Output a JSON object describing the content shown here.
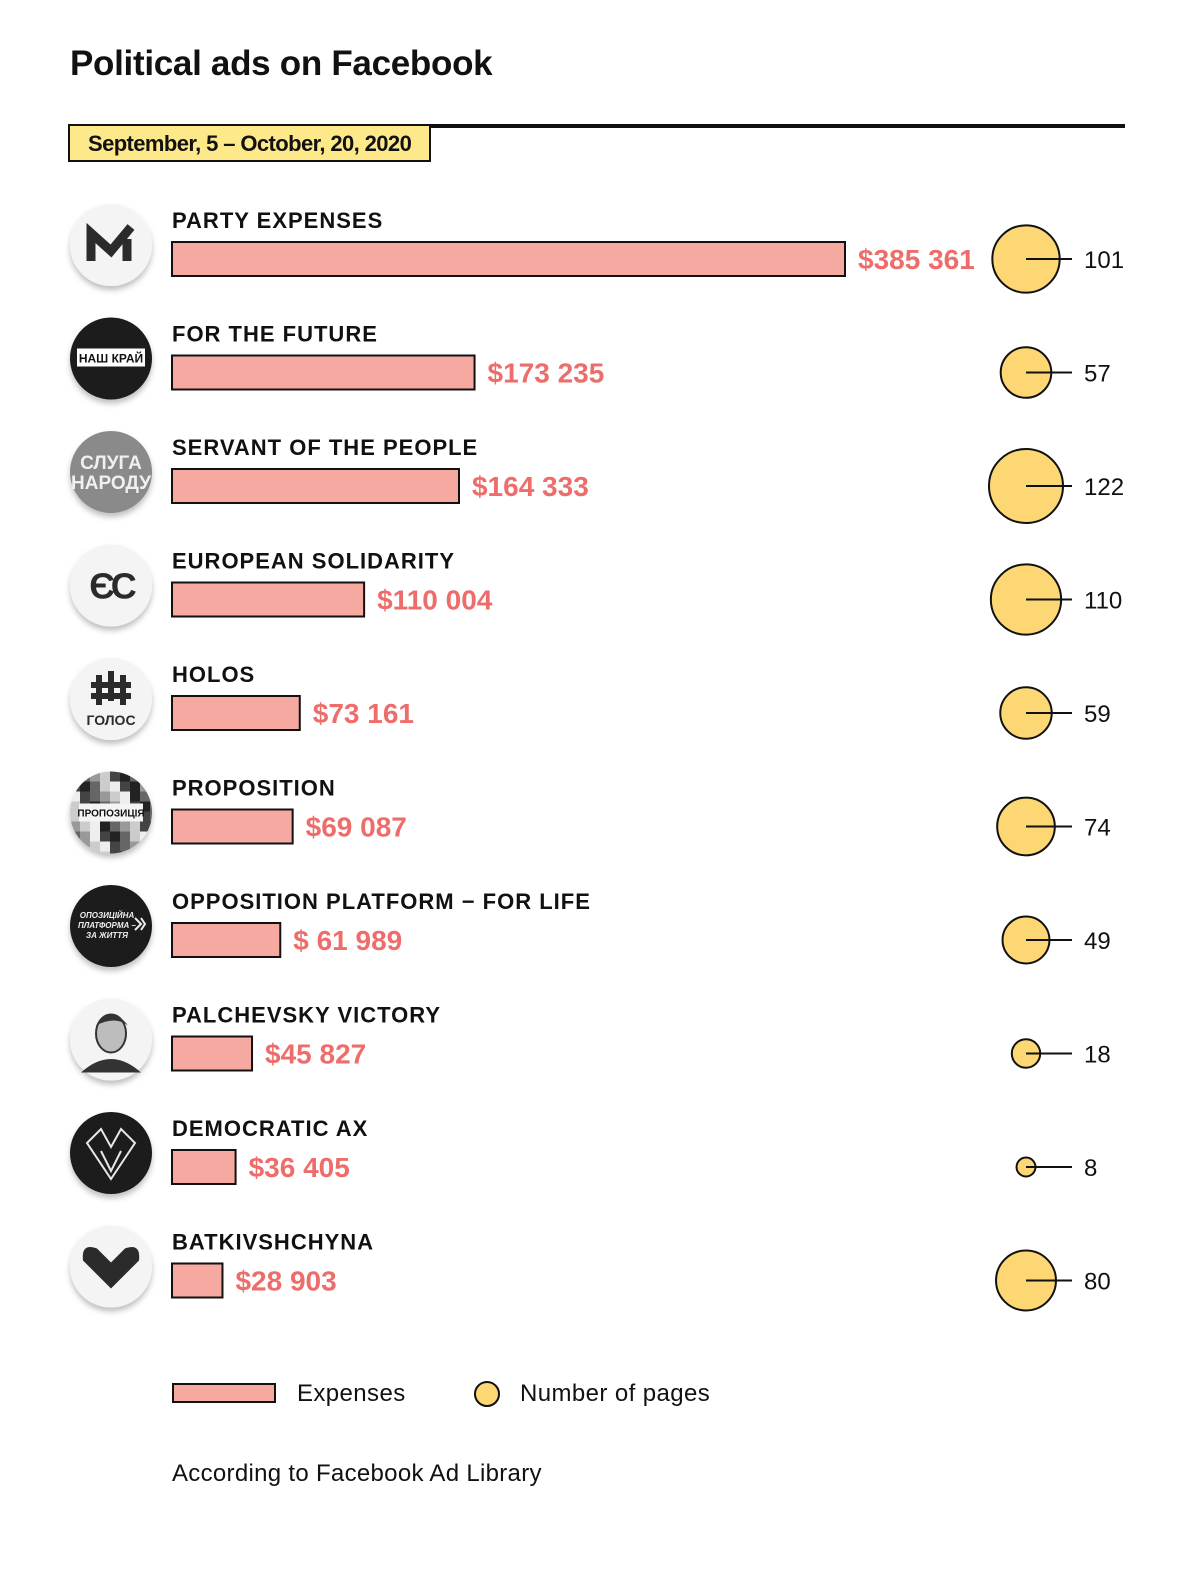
{
  "title": "Political ads on Facebook",
  "date_range": "September, 5 – October, 20, 2020",
  "legend": {
    "expenses": "Expenses",
    "pages": "Number of pages"
  },
  "source": "According to Facebook Ad Library",
  "colors": {
    "bar": "#f5a9a1",
    "value_text": "#ee6d6b",
    "bubble": "#fcd774",
    "outline": "#111111"
  },
  "chart_data": {
    "type": "bar",
    "categories": [
      "PARTY EXPENSES",
      "FOR THE FUTURE",
      "SERVANT OF THE PEOPLE",
      "EUROPEAN SOLIDARITY",
      "HOLOS",
      "PROPOSITION",
      "OPPOSITION PLATFORM − FOR LIFE",
      "PALCHEVSKY VICTORY",
      "DEMOCRATIC AX",
      "BATKIVSHCHYNA"
    ],
    "series": [
      {
        "name": "Expenses",
        "values": [
          385361,
          173235,
          164333,
          110004,
          73161,
          69087,
          61989,
          45827,
          36405,
          28903
        ],
        "labels": [
          "$385 361",
          "$173 235",
          "$164 333",
          "$110 004",
          "$73 161",
          "$69 087",
          "$ 61  989",
          "$45 827",
          "$36 405",
          "$28 903"
        ]
      },
      {
        "name": "Number of pages",
        "values": [
          101,
          57,
          122,
          110,
          59,
          74,
          49,
          18,
          8,
          80
        ]
      }
    ],
    "logos": [
      {
        "icon": "party-expenses-m-logo-icon",
        "style": "light"
      },
      {
        "icon": "nash-krai-logo-icon",
        "style": "dark",
        "text": "НАШ КРАЙ"
      },
      {
        "icon": "sluha-narodu-logo-icon",
        "style": "gray",
        "text": "СЛУГА НАРОДУ"
      },
      {
        "icon": "european-solidarity-logo-icon",
        "style": "light",
        "text": "ЄС"
      },
      {
        "icon": "holos-logo-icon",
        "style": "light",
        "text": "ГОЛОС"
      },
      {
        "icon": "propozytsia-logo-icon",
        "style": "mosaic",
        "text": "ПРОПОЗИЦІЯ"
      },
      {
        "icon": "opposition-platform-logo-icon",
        "style": "dark",
        "text": "ОПОЗИЦІЙНА ПЛАТФОРМА – ЗА ЖИТТЯ"
      },
      {
        "icon": "palchevsky-portrait-icon",
        "style": "light"
      },
      {
        "icon": "democratic-ax-logo-icon",
        "style": "dark"
      },
      {
        "icon": "batkivshchyna-heart-logo-icon",
        "style": "light"
      }
    ]
  }
}
